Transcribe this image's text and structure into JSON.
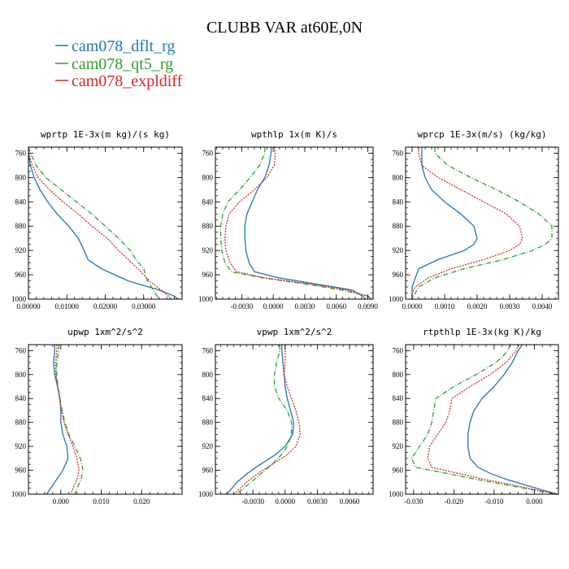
{
  "title": "CLUBB VAR at60E,0N",
  "legend": [
    {
      "name": "cam078_dflt_rg",
      "color": "#1f77b4",
      "dash": "solid"
    },
    {
      "name": "cam078_qt5_rg",
      "color": "#2ca02c",
      "dash": "dashdot"
    },
    {
      "name": "cam078_expldiff",
      "color": "#d62728",
      "dash": "dotted"
    }
  ],
  "chart_data": [
    {
      "type": "line",
      "title": "wprtp  1E-3x(m kg)/(s kg)",
      "xlim": [
        0.0,
        0.04
      ],
      "ylim": [
        750,
        1000
      ],
      "y_inverted": true,
      "xticks": [
        0.0,
        0.01,
        0.02,
        0.03
      ],
      "xtick_labels": [
        "0.00000",
        "0.01000",
        "0.02000",
        "0.03000"
      ],
      "yticks": [
        760,
        800,
        840,
        880,
        920,
        960,
        1000
      ],
      "ytick_labels": [
        "760",
        "800",
        "840",
        "880",
        "920",
        "960",
        "1000"
      ],
      "y": [
        750,
        760,
        780,
        800,
        820,
        840,
        860,
        880,
        900,
        920,
        935,
        950,
        970,
        985,
        995,
        1000
      ],
      "series": [
        {
          "name": "cam078_dflt_rg",
          "values": [
            0.0,
            0.0,
            0.0005,
            0.0015,
            0.003,
            0.005,
            0.0075,
            0.0105,
            0.013,
            0.0145,
            0.0155,
            0.019,
            0.026,
            0.034,
            0.038,
            0.039
          ]
        },
        {
          "name": "cam078_qt5_rg",
          "values": [
            0.0,
            0.0005,
            0.002,
            0.0045,
            0.0085,
            0.0125,
            0.0165,
            0.02,
            0.0235,
            0.0265,
            0.028,
            0.03,
            0.031,
            0.0325,
            0.0335,
            0.034
          ]
        },
        {
          "name": "cam078_expldiff",
          "values": [
            0.0,
            0.0,
            0.001,
            0.0025,
            0.0055,
            0.009,
            0.013,
            0.0165,
            0.0205,
            0.0235,
            0.026,
            0.0285,
            0.0315,
            0.0345,
            0.0365,
            0.037
          ]
        }
      ]
    },
    {
      "type": "line",
      "title": "wpthlp  1x(m K)/s",
      "xlim": [
        -0.0055,
        0.0095
      ],
      "ylim": [
        750,
        1000
      ],
      "y_inverted": true,
      "xticks": [
        -0.003,
        0.0,
        0.003,
        0.006,
        0.009
      ],
      "xtick_labels": [
        "-0.0030",
        "0.0000",
        "0.0030",
        "0.0060",
        "0.0090"
      ],
      "yticks": [
        760,
        800,
        840,
        880,
        920,
        960,
        1000
      ],
      "ytick_labels": [
        "760",
        "800",
        "840",
        "880",
        "920",
        "960",
        "1000"
      ],
      "y": [
        750,
        760,
        780,
        800,
        820,
        840,
        860,
        880,
        900,
        920,
        940,
        955,
        965,
        975,
        985,
        995,
        1000
      ],
      "series": [
        {
          "name": "cam078_dflt_rg",
          "values": [
            -0.0002,
            -0.0002,
            -0.0004,
            -0.0008,
            -0.0015,
            -0.002,
            -0.0025,
            -0.0027,
            -0.0027,
            -0.0026,
            -0.0023,
            -0.0018,
            0.0005,
            0.004,
            0.0075,
            0.0085,
            0.0088
          ]
        },
        {
          "name": "cam078_qt5_rg",
          "values": [
            -0.0008,
            -0.0008,
            -0.0013,
            -0.0022,
            -0.0032,
            -0.0043,
            -0.0048,
            -0.005,
            -0.005,
            -0.0049,
            -0.0046,
            -0.004,
            -0.001,
            0.003,
            0.0065,
            0.009,
            0.0095
          ]
        },
        {
          "name": "cam078_expldiff",
          "values": [
            0.0001,
            0.0002,
            0.0001,
            -0.0006,
            -0.0018,
            -0.0032,
            -0.0042,
            -0.0045,
            -0.0046,
            -0.0045,
            -0.0041,
            -0.0035,
            -0.0008,
            0.0035,
            0.007,
            0.009,
            0.0093
          ]
        }
      ]
    },
    {
      "type": "line",
      "title": "wprcp  1E-3x(m/s) (kg/kg)",
      "xlim": [
        -0.0002,
        0.0045
      ],
      "ylim": [
        750,
        1000
      ],
      "y_inverted": true,
      "xticks": [
        0.0,
        0.001,
        0.002,
        0.003,
        0.004
      ],
      "xtick_labels": [
        "0.0000",
        "0.0010",
        "0.0020",
        "0.0030",
        "0.0040"
      ],
      "yticks": [
        760,
        800,
        840,
        880,
        920,
        960,
        1000
      ],
      "ytick_labels": [
        "760",
        "800",
        "840",
        "880",
        "920",
        "960",
        "1000"
      ],
      "y": [
        750,
        760,
        780,
        800,
        820,
        840,
        860,
        880,
        900,
        910,
        920,
        935,
        950,
        965,
        980,
        990,
        1000
      ],
      "series": [
        {
          "name": "cam078_dflt_rg",
          "values": [
            0.0003,
            0.0003,
            0.0003,
            0.0004,
            0.0006,
            0.001,
            0.0015,
            0.0019,
            0.002,
            0.0019,
            0.0016,
            0.0008,
            0.0002,
            0.0001,
            0.0,
            0.0,
            0.0
          ]
        },
        {
          "name": "cam078_qt5_rg",
          "values": [
            0.0007,
            0.0007,
            0.0011,
            0.0018,
            0.0026,
            0.0033,
            0.0039,
            0.0043,
            0.0043,
            0.0041,
            0.0037,
            0.0028,
            0.0016,
            0.0007,
            0.0002,
            0.0001,
            0.0
          ]
        },
        {
          "name": "cam078_expldiff",
          "values": [
            0.0002,
            0.0002,
            0.0003,
            0.0008,
            0.0015,
            0.0022,
            0.0029,
            0.0033,
            0.0034,
            0.0033,
            0.003,
            0.0022,
            0.0012,
            0.0005,
            0.0001,
            0.0,
            0.0
          ]
        }
      ]
    },
    {
      "type": "line",
      "title": "upwp  1xm^2/s^2",
      "xlim": [
        -0.008,
        0.03
      ],
      "ylim": [
        750,
        1000
      ],
      "y_inverted": true,
      "xticks": [
        0.0,
        0.01,
        0.02
      ],
      "xtick_labels": [
        "0.000",
        "0.010",
        "0.020"
      ],
      "yticks": [
        760,
        800,
        840,
        880,
        920,
        960,
        1000
      ],
      "ytick_labels": [
        "760",
        "800",
        "840",
        "880",
        "920",
        "960",
        "1000"
      ],
      "y": [
        750,
        760,
        780,
        800,
        820,
        840,
        860,
        880,
        900,
        920,
        940,
        960,
        975,
        990,
        1000
      ],
      "series": [
        {
          "name": "cam078_dflt_rg",
          "values": [
            -0.0015,
            -0.0015,
            -0.0018,
            -0.0015,
            -0.0008,
            -0.0002,
            0.0,
            0.0,
            0.0005,
            0.0015,
            0.0018,
            0.0005,
            -0.001,
            -0.0025,
            -0.0035
          ]
        },
        {
          "name": "cam078_qt5_rg",
          "values": [
            -0.0005,
            -0.0005,
            -0.001,
            -0.001,
            -0.0007,
            -0.0002,
            0.0003,
            0.001,
            0.002,
            0.0035,
            0.0048,
            0.0055,
            0.005,
            0.004,
            0.0035
          ]
        },
        {
          "name": "cam078_expldiff",
          "values": [
            -0.001,
            -0.001,
            -0.0013,
            -0.0012,
            -0.0008,
            -0.0003,
            0.0002,
            0.0008,
            0.0018,
            0.003,
            0.004,
            0.0045,
            0.004,
            0.003,
            0.0025
          ]
        }
      ]
    },
    {
      "type": "line",
      "title": "vpwp  1xm^2/s^2",
      "xlim": [
        -0.0065,
        0.0082
      ],
      "ylim": [
        750,
        1000
      ],
      "y_inverted": true,
      "xticks": [
        -0.003,
        0.0,
        0.003,
        0.006
      ],
      "xtick_labels": [
        "-0.0030",
        "0.0000",
        "0.0030",
        "0.0060"
      ],
      "yticks": [
        760,
        800,
        840,
        880,
        920,
        960,
        1000
      ],
      "ytick_labels": [
        "760",
        "800",
        "840",
        "880",
        "920",
        "960",
        "1000"
      ],
      "y": [
        750,
        760,
        780,
        800,
        820,
        840,
        860,
        880,
        900,
        920,
        935,
        950,
        965,
        980,
        995,
        1000
      ],
      "series": [
        {
          "name": "cam078_dflt_rg",
          "values": [
            -0.0003,
            -0.0003,
            -0.0002,
            -0.0001,
            0.0,
            0.0002,
            0.0005,
            0.0008,
            0.0007,
            0.0,
            -0.001,
            -0.0023,
            -0.0035,
            -0.0045,
            -0.0052,
            -0.0055
          ]
        },
        {
          "name": "cam078_qt5_rg",
          "values": [
            -0.0005,
            -0.0005,
            -0.0008,
            -0.001,
            -0.001,
            -0.0006,
            0.0002,
            0.0006,
            0.0006,
            0.0002,
            -0.0004,
            -0.0012,
            -0.0022,
            -0.0032,
            -0.0042,
            -0.0045
          ]
        },
        {
          "name": "cam078_expldiff",
          "values": [
            0.0,
            0.0,
            0.0,
            -0.0001,
            0.0002,
            0.0006,
            0.001,
            0.0013,
            0.0014,
            0.001,
            0.0001,
            -0.0012,
            -0.0025,
            -0.0036,
            -0.0045,
            -0.0048
          ]
        }
      ]
    },
    {
      "type": "line",
      "title": "rtpthlp  1E-3x(kg K)/kg",
      "xlim": [
        -0.032,
        0.006
      ],
      "ylim": [
        750,
        1000
      ],
      "y_inverted": true,
      "xticks": [
        -0.03,
        -0.02,
        -0.01,
        0.0
      ],
      "xtick_labels": [
        "-0.030",
        "-0.020",
        "-0.010",
        "0.000"
      ],
      "yticks": [
        760,
        800,
        840,
        880,
        920,
        960,
        1000
      ],
      "ytick_labels": [
        "760",
        "800",
        "840",
        "880",
        "920",
        "960",
        "1000"
      ],
      "y": [
        750,
        760,
        780,
        800,
        820,
        840,
        860,
        880,
        900,
        920,
        940,
        955,
        965,
        975,
        985,
        995,
        1000
      ],
      "series": [
        {
          "name": "cam078_dflt_rg",
          "values": [
            -0.003,
            -0.004,
            -0.0055,
            -0.0075,
            -0.01,
            -0.013,
            -0.015,
            -0.016,
            -0.0165,
            -0.0165,
            -0.016,
            -0.014,
            -0.011,
            -0.007,
            -0.002,
            0.003,
            0.006
          ]
        },
        {
          "name": "cam078_qt5_rg",
          "values": [
            -0.006,
            -0.0065,
            -0.0095,
            -0.0145,
            -0.02,
            -0.0245,
            -0.025,
            -0.0255,
            -0.0265,
            -0.0285,
            -0.0305,
            -0.0295,
            -0.022,
            -0.0145,
            -0.0065,
            0.0015,
            0.006
          ]
        },
        {
          "name": "cam078_expldiff",
          "values": [
            -0.004,
            -0.0045,
            -0.007,
            -0.011,
            -0.016,
            -0.0205,
            -0.021,
            -0.022,
            -0.024,
            -0.026,
            -0.0265,
            -0.0255,
            -0.019,
            -0.0125,
            -0.005,
            0.002,
            0.006
          ]
        }
      ]
    }
  ]
}
